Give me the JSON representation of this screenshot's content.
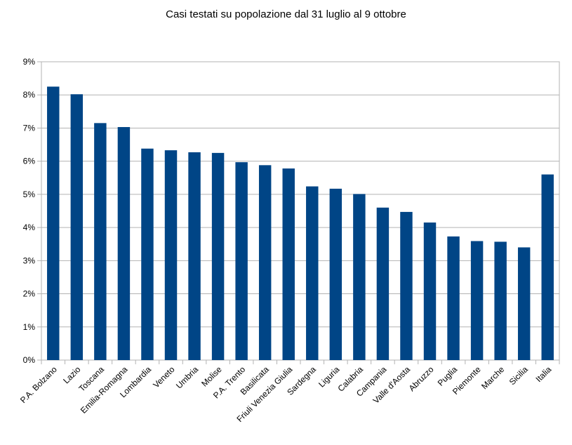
{
  "chart_data": {
    "type": "bar",
    "title": "Casi testati su popolazione dal 31 luglio al 9 ottobre",
    "xlabel": "",
    "ylabel": "",
    "ylim": [
      0,
      9
    ],
    "y_ticks": [
      "0%",
      "1%",
      "2%",
      "3%",
      "4%",
      "5%",
      "6%",
      "7%",
      "8%",
      "9%"
    ],
    "grid": true,
    "legend": "none",
    "bar_color": "#004586",
    "categories": [
      "P.A. Bolzano",
      "Lazio",
      "Toscana",
      "Emilia-Romagna",
      "Lombardia",
      "Veneto",
      "Umbria",
      "Molise",
      "P.A. Trento",
      "Basilicata",
      "Friuli Venezia Giulia",
      "Sardegna",
      "Liguria",
      "Calabria",
      "Campania",
      "Valle d'Aosta",
      "Abruzzo",
      "Puglia",
      "Piemonte",
      "Marche",
      "Sicilia",
      "Italia"
    ],
    "values": [
      8.25,
      8.02,
      7.15,
      7.03,
      6.38,
      6.33,
      6.27,
      6.25,
      5.97,
      5.88,
      5.78,
      5.24,
      5.17,
      5.01,
      4.6,
      4.47,
      4.15,
      3.73,
      3.59,
      3.57,
      3.4,
      5.6
    ]
  }
}
